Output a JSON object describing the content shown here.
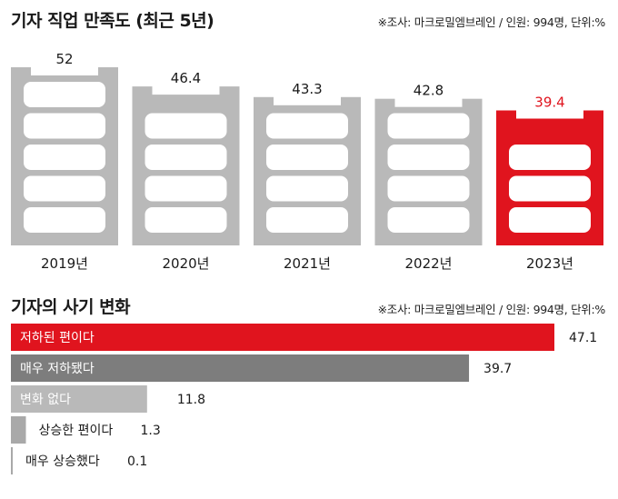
{
  "chart_data": [
    {
      "type": "bar",
      "title": "기자 직업 만족도 (최근 5년)",
      "source": "※조사: 마크로밀엠브레인 / 인원: 994명, 단위:%",
      "categories": [
        "2019년",
        "2020년",
        "2021년",
        "2022년",
        "2023년"
      ],
      "values": [
        52,
        46.4,
        43.3,
        42.8,
        39.4
      ],
      "value_labels": [
        "52",
        "46.4",
        "43.3",
        "42.8",
        "39.4"
      ],
      "highlight_index": 4,
      "ylim": [
        0,
        52
      ]
    },
    {
      "type": "bar",
      "orientation": "horizontal",
      "title": "기자의 사기 변화",
      "source": "※조사: 마크로밀엠브레인 / 인원: 994명, 단위:%",
      "categories": [
        "저하된 편이다",
        "매우 저하됐다",
        "변화 없다",
        "상승한 편이다",
        "매우 상승했다"
      ],
      "values": [
        47.1,
        39.7,
        11.8,
        1.3,
        0.1
      ],
      "value_labels": [
        "47.1",
        "39.7",
        "11.8",
        "1.3",
        "0.1"
      ],
      "xlim": [
        0,
        47.1
      ]
    }
  ],
  "colors": {
    "highlight": "#e0141e",
    "gray_light": "#b9b9b9",
    "gray_mid": "#7d7d7d",
    "gray_dark": "#a9a9a9",
    "slot_fill": "#ffffff"
  }
}
